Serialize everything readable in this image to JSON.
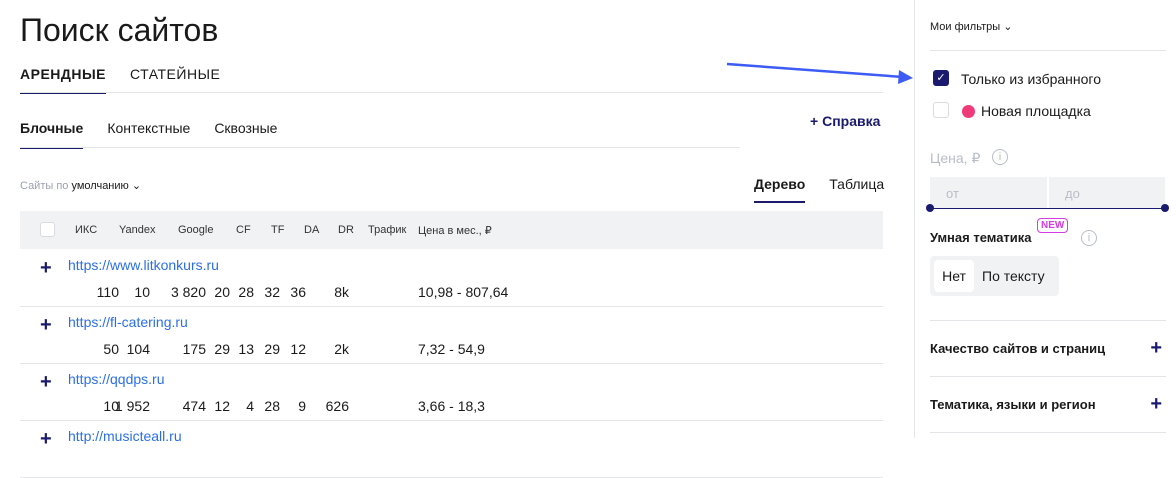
{
  "page_title": "Поиск сайтов",
  "main_tabs": [
    {
      "label": "АРЕНДНЫЕ",
      "active": true
    },
    {
      "label": "СТАТЕЙНЫЕ",
      "active": false
    }
  ],
  "sub_tabs": [
    {
      "label": "Блочные",
      "active": true
    },
    {
      "label": "Контекстные",
      "active": false
    },
    {
      "label": "Сквозные",
      "active": false
    }
  ],
  "help_label": "Справка",
  "sort": {
    "prefix": "Сайты по",
    "value": "умолчанию"
  },
  "view_tabs": [
    {
      "label": "Дерево",
      "active": true
    },
    {
      "label": "Таблица",
      "active": false
    }
  ],
  "columns": [
    "ИКС",
    "Yandex",
    "Google",
    "CF",
    "TF",
    "DA",
    "DR",
    "Трафик",
    "Цена в мес., ₽"
  ],
  "rows": [
    {
      "url": "https://www.litkonkurs.ru",
      "values": [
        "110",
        "10",
        "3 820",
        "20",
        "28",
        "32",
        "36",
        "8k",
        "10,98 - 807,64"
      ]
    },
    {
      "url": "https://fl-catering.ru",
      "values": [
        "50",
        "104",
        "175",
        "29",
        "13",
        "29",
        "12",
        "2k",
        "7,32 - 54,9"
      ]
    },
    {
      "url": "https://qqdps.ru",
      "values": [
        "10",
        "1 952",
        "474",
        "12",
        "4",
        "28",
        "9",
        "626",
        "3,66 - 18,3"
      ]
    },
    {
      "url": "http://musicteall.ru",
      "values": []
    }
  ],
  "sidebar": {
    "my_filters": "Мои фильтры",
    "only_favorites": {
      "label": "Только из избранного",
      "checked": true
    },
    "new_site": {
      "label": "Новая площадка",
      "checked": false
    },
    "price_label": "Цена, ₽",
    "price_from_placeholder": "от",
    "price_to_placeholder": "до",
    "smart_topic": "Умная тематика",
    "new_badge": "NEW",
    "smart_options": [
      {
        "label": "Нет",
        "active": true
      },
      {
        "label": "По тексту",
        "active": false
      }
    ],
    "sections": [
      "Качество сайтов и страниц",
      "Тематика, языки и регион"
    ]
  },
  "colors": {
    "accent": "#1a1a6e",
    "link": "#2b6fe6",
    "badge": "#d63ce6",
    "arrow": "#3d5cf5",
    "new_dot": "#f03a7a"
  }
}
